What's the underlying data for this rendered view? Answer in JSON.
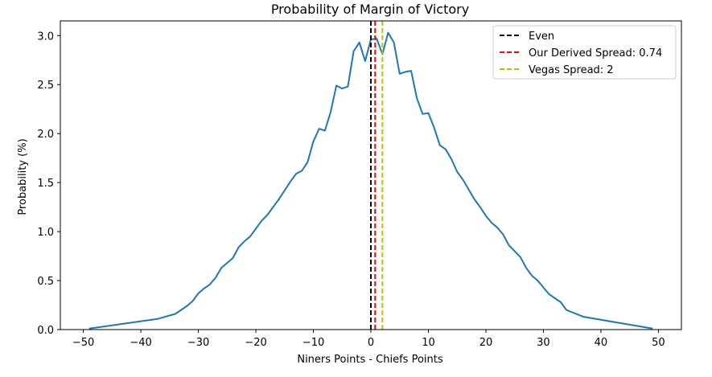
{
  "chart_data": {
    "type": "line",
    "title": "Probability of Margin of Victory",
    "xlabel": "Niners Points - Chiefs Points",
    "ylabel": "Probability (%)",
    "xlim": [
      -54,
      54
    ],
    "ylim": [
      0,
      3.15
    ],
    "xticks": [
      -50,
      -40,
      -30,
      -20,
      -10,
      0,
      10,
      20,
      30,
      40,
      50
    ],
    "xtick_labels": [
      "−50",
      "−40",
      "−30",
      "−20",
      "−10",
      "0",
      "10",
      "20",
      "30",
      "40",
      "50"
    ],
    "yticks": [
      0.0,
      0.5,
      1.0,
      1.5,
      2.0,
      2.5,
      3.0
    ],
    "ytick_labels": [
      "0.0",
      "0.5",
      "1.0",
      "1.5",
      "2.0",
      "2.5",
      "3.0"
    ],
    "grid": false,
    "legend_position": "top-right",
    "series": [
      {
        "color": "#1f77b4",
        "x": [
          -49,
          -37,
          -34,
          -33,
          -32,
          -31,
          -30,
          -29,
          -28,
          -27,
          -26,
          -25,
          -24,
          -23,
          -22,
          -21,
          -20,
          -19,
          -18,
          -17,
          -16,
          -15,
          -14,
          -13,
          -12,
          -11,
          -10,
          -9,
          -8,
          -7,
          -6,
          -5,
          -4,
          -3,
          -2,
          -1,
          0,
          1,
          2,
          3,
          4,
          5,
          6,
          7,
          8,
          9,
          10,
          11,
          12,
          13,
          14,
          15,
          16,
          17,
          18,
          19,
          20,
          21,
          22,
          23,
          24,
          25,
          26,
          27,
          28,
          29,
          30,
          31,
          32,
          33,
          34,
          37,
          49
        ],
        "values": [
          0.01,
          0.11,
          0.16,
          0.2,
          0.24,
          0.29,
          0.37,
          0.42,
          0.46,
          0.53,
          0.63,
          0.68,
          0.73,
          0.84,
          0.9,
          0.95,
          1.03,
          1.11,
          1.17,
          1.25,
          1.33,
          1.42,
          1.51,
          1.59,
          1.62,
          1.71,
          1.92,
          2.05,
          2.03,
          2.22,
          2.49,
          2.46,
          2.48,
          2.84,
          2.93,
          2.74,
          2.96,
          2.97,
          2.81,
          3.03,
          2.93,
          2.61,
          2.63,
          2.64,
          2.36,
          2.2,
          2.21,
          2.06,
          1.88,
          1.84,
          1.74,
          1.61,
          1.53,
          1.43,
          1.33,
          1.25,
          1.16,
          1.09,
          1.04,
          0.97,
          0.86,
          0.8,
          0.74,
          0.63,
          0.55,
          0.5,
          0.43,
          0.36,
          0.32,
          0.28,
          0.2,
          0.13,
          0.01
        ]
      }
    ],
    "vlines": [
      {
        "name": "Even",
        "x": 0,
        "color": "#000000"
      },
      {
        "name": "Our Derived Spread: 0.74",
        "x": 0.74,
        "color": "#ff0000"
      },
      {
        "name": "Vegas Spread: 2",
        "x": 2,
        "color": "#bfbf00"
      }
    ]
  }
}
